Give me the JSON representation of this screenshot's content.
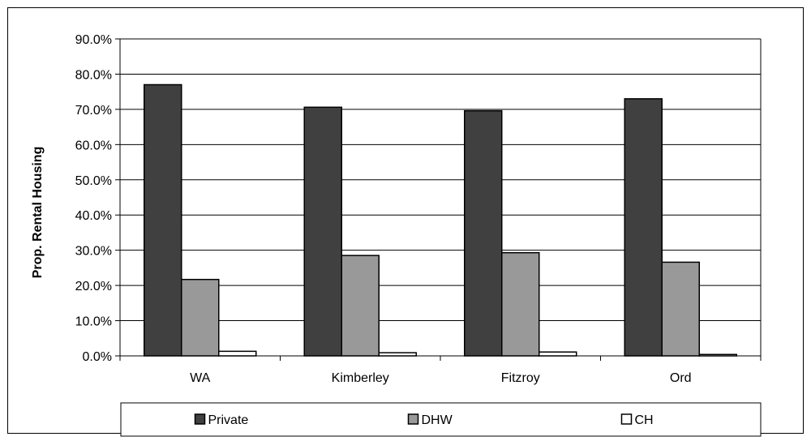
{
  "chart_data": {
    "type": "bar",
    "title": "",
    "xlabel": "",
    "ylabel": "Prop. Rental Housing",
    "categories": [
      "WA",
      "Kimberley",
      "Fitzroy",
      "Ord"
    ],
    "series": [
      {
        "name": "Private",
        "values": [
          77.0,
          70.6,
          69.6,
          73.0
        ],
        "color": "#404040"
      },
      {
        "name": "DHW",
        "values": [
          21.7,
          28.5,
          29.3,
          26.6
        ],
        "color": "#999999"
      },
      {
        "name": "CH",
        "values": [
          1.3,
          0.9,
          1.1,
          0.4
        ],
        "color": "#ffffff"
      }
    ],
    "ylim": [
      0,
      90
    ],
    "yticks": [
      0,
      10,
      20,
      30,
      40,
      50,
      60,
      70,
      80,
      90
    ],
    "ytick_labels": [
      "0.0%",
      "10.0%",
      "20.0%",
      "30.0%",
      "40.0%",
      "50.0%",
      "60.0%",
      "70.0%",
      "80.0%",
      "90.0%"
    ],
    "grid": true,
    "legend_position": "bottom"
  }
}
